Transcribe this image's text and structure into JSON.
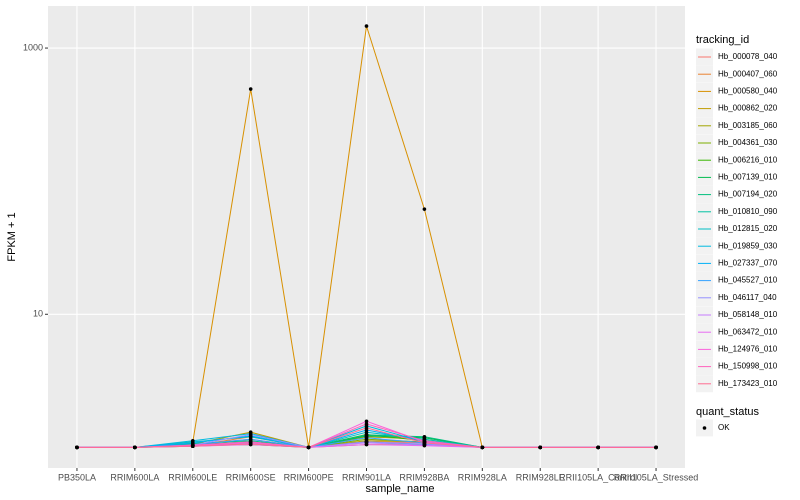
{
  "chart_data": {
    "type": "line",
    "x_label": "sample_name",
    "y_label": "FPKM + 1",
    "categories": [
      "PB350LA",
      "RRIM600LA",
      "RRIM600LE",
      "RRIM600SE",
      "RRIM600PE",
      "RRIM901LA",
      "RRIM928BA",
      "RRIM928LA",
      "RRIM928LE",
      "RRII105LA_Control",
      "RRII105LA_Stressed"
    ],
    "log_y": true,
    "ylim": [
      0.7,
      2070
    ],
    "yticks": [
      10,
      1000
    ],
    "grid": true,
    "legend_title": "tracking_id",
    "series": [
      {
        "name": "Hb_000078_040",
        "color": "#F8766D",
        "values": [
          1,
          1,
          1.05,
          1.15,
          1,
          1.1,
          1.08,
          1,
          1,
          1,
          1
        ]
      },
      {
        "name": "Hb_000407_060",
        "color": "#EA8331",
        "values": [
          1,
          1,
          1.03,
          1.2,
          1,
          1.05,
          1.05,
          1,
          1,
          1,
          1
        ]
      },
      {
        "name": "Hb_000580_040",
        "color": "#D89000",
        "values": [
          1,
          1,
          1.1,
          492,
          1,
          1462,
          61.6,
          1,
          1,
          1,
          1
        ]
      },
      {
        "name": "Hb_000862_020",
        "color": "#C09B00",
        "values": [
          1,
          1,
          1.06,
          1.3,
          1,
          1.12,
          1.1,
          1,
          1,
          1,
          1
        ]
      },
      {
        "name": "Hb_003185_060",
        "color": "#A3A500",
        "values": [
          1,
          1,
          1.04,
          1.1,
          1,
          1.2,
          1.15,
          1,
          1,
          1,
          1
        ]
      },
      {
        "name": "Hb_004361_030",
        "color": "#7CAE00",
        "values": [
          1,
          1,
          1.02,
          1.08,
          1,
          1.15,
          1.1,
          1,
          1,
          1,
          1
        ]
      },
      {
        "name": "Hb_006216_010",
        "color": "#39B600",
        "values": [
          1,
          1,
          1.03,
          1.05,
          1,
          1.25,
          1.12,
          1,
          1,
          1,
          1
        ]
      },
      {
        "name": "Hb_007139_010",
        "color": "#00BB4E",
        "values": [
          1,
          1,
          1.05,
          1.1,
          1,
          1.22,
          1.18,
          1,
          1,
          1,
          1
        ]
      },
      {
        "name": "Hb_007194_020",
        "color": "#00BF7D",
        "values": [
          1,
          1,
          1.07,
          1.12,
          1,
          1.24,
          1.2,
          1,
          1,
          1,
          1
        ]
      },
      {
        "name": "Hb_010810_090",
        "color": "#00C1A3",
        "values": [
          1,
          1,
          1.02,
          1.06,
          1,
          1.1,
          1.05,
          1,
          1,
          1,
          1
        ]
      },
      {
        "name": "Hb_012815_020",
        "color": "#00BFC4",
        "values": [
          1,
          1,
          1.1,
          1.2,
          1,
          1.3,
          1.15,
          1,
          1,
          1,
          1
        ]
      },
      {
        "name": "Hb_019859_030",
        "color": "#00BAE0",
        "values": [
          1,
          1,
          1.12,
          1.27,
          1,
          1.45,
          1.1,
          1,
          1,
          1,
          1
        ]
      },
      {
        "name": "Hb_027337_070",
        "color": "#00B0F6",
        "values": [
          1,
          1,
          1.08,
          1.22,
          1,
          1.35,
          1.12,
          1,
          1,
          1,
          1
        ]
      },
      {
        "name": "Hb_045527_010",
        "color": "#35A2FF",
        "values": [
          1,
          1,
          1.05,
          1.15,
          1,
          1.18,
          1.08,
          1,
          1,
          1,
          1
        ]
      },
      {
        "name": "Hb_046117_040",
        "color": "#9590FF",
        "values": [
          1,
          1,
          1.04,
          1.25,
          1,
          1.1,
          1.06,
          1,
          1,
          1,
          1
        ]
      },
      {
        "name": "Hb_058148_010",
        "color": "#C77CFF",
        "values": [
          1,
          1,
          1.03,
          1.1,
          1,
          1.08,
          1.04,
          1,
          1,
          1,
          1
        ]
      },
      {
        "name": "Hb_063472_010",
        "color": "#E76BF3",
        "values": [
          1,
          1,
          1.02,
          1.05,
          1,
          1.05,
          1.03,
          1,
          1,
          1,
          1
        ]
      },
      {
        "name": "Hb_124976_010",
        "color": "#FA62DB",
        "values": [
          1,
          1,
          1.03,
          1.08,
          1,
          1.57,
          1.1,
          1,
          1,
          1,
          1
        ]
      },
      {
        "name": "Hb_150998_010",
        "color": "#FF62BC",
        "values": [
          1,
          1,
          1.04,
          1.1,
          1,
          1.5,
          1.12,
          1,
          1,
          1,
          1
        ]
      },
      {
        "name": "Hb_173423_010",
        "color": "#FF6C91",
        "values": [
          1,
          1,
          1.02,
          1.06,
          1,
          1.4,
          1.08,
          1,
          1,
          1,
          1
        ]
      }
    ],
    "point_legend": {
      "title": "quant_status",
      "labels": [
        "OK"
      ]
    }
  }
}
